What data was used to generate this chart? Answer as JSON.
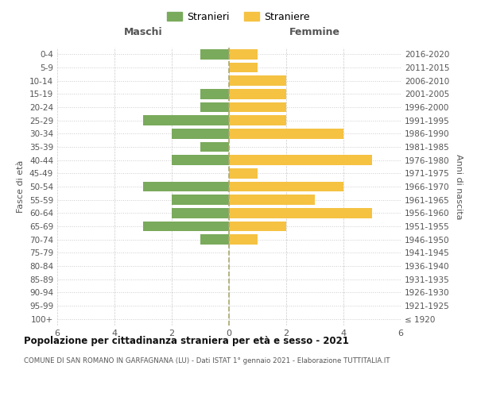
{
  "age_groups": [
    "100+",
    "95-99",
    "90-94",
    "85-89",
    "80-84",
    "75-79",
    "70-74",
    "65-69",
    "60-64",
    "55-59",
    "50-54",
    "45-49",
    "40-44",
    "35-39",
    "30-34",
    "25-29",
    "20-24",
    "15-19",
    "10-14",
    "5-9",
    "0-4"
  ],
  "birth_years": [
    "≤ 1920",
    "1921-1925",
    "1926-1930",
    "1931-1935",
    "1936-1940",
    "1941-1945",
    "1946-1950",
    "1951-1955",
    "1956-1960",
    "1961-1965",
    "1966-1970",
    "1971-1975",
    "1976-1980",
    "1981-1985",
    "1986-1990",
    "1991-1995",
    "1996-2000",
    "2001-2005",
    "2006-2010",
    "2011-2015",
    "2016-2020"
  ],
  "maschi": [
    0,
    0,
    0,
    0,
    0,
    0,
    1,
    3,
    2,
    2,
    3,
    0,
    2,
    1,
    2,
    3,
    1,
    1,
    0,
    0,
    1
  ],
  "femmine": [
    0,
    0,
    0,
    0,
    0,
    0,
    1,
    2,
    5,
    3,
    4,
    1,
    5,
    0,
    4,
    2,
    2,
    2,
    2,
    1,
    1
  ],
  "maschi_color": "#7aaa5c",
  "femmine_color": "#f5c242",
  "title": "Popolazione per cittadinanza straniera per età e sesso - 2021",
  "subtitle": "COMUNE DI SAN ROMANO IN GARFAGNANA (LU) - Dati ISTAT 1° gennaio 2021 - Elaborazione TUTTITALIA.IT",
  "legend_maschi": "Stranieri",
  "legend_femmine": "Straniere",
  "xlabel_left": "Maschi",
  "xlabel_right": "Femmine",
  "ylabel_left": "Fasce di età",
  "ylabel_right": "Anni di nascita",
  "xlim": 6,
  "background_color": "#ffffff",
  "grid_color": "#cccccc",
  "bar_height": 0.75
}
